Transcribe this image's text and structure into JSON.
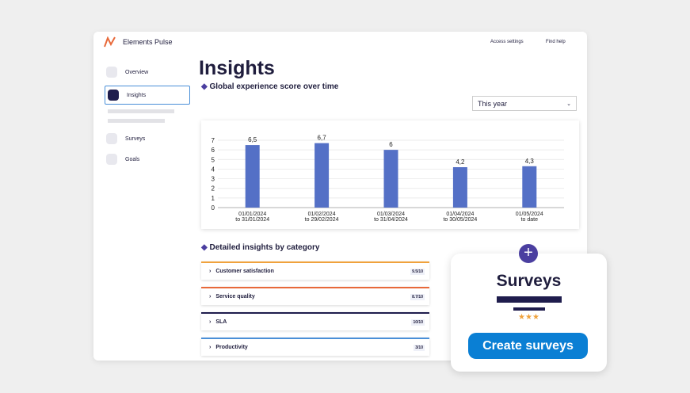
{
  "header": {
    "app_name": "Elements Pulse",
    "access_settings": "Access settings",
    "find_help": "Find help"
  },
  "sidebar": {
    "items": [
      "Overview",
      "Insights",
      "Surveys",
      "Goals"
    ],
    "selected": "Insights"
  },
  "page": {
    "title": "Insights",
    "chart_heading": "Global experience score over time",
    "period": "This year",
    "details_heading": "Detailed insights by category"
  },
  "chart_data": {
    "type": "bar",
    "categories": [
      [
        "01/01/2024",
        "to 31/01/2024"
      ],
      [
        "01/02/2024",
        "to 29/02/2024"
      ],
      [
        "01/03/2024",
        "to 31/04/2024"
      ],
      [
        "01/04/2024",
        "to 30/05/2024"
      ],
      [
        "01/05/2024",
        "to date"
      ]
    ],
    "values": [
      6.5,
      6.7,
      6,
      4.2,
      4.3
    ],
    "value_labels": [
      "6,5",
      "6,7",
      "6",
      "4,2",
      "4,3"
    ],
    "color": "#5470c6",
    "ylim": [
      0,
      7
    ],
    "yticks": [
      0,
      1,
      2,
      3,
      4,
      5,
      6,
      7
    ],
    "grid": true
  },
  "categories_list": {
    "rows": [
      {
        "name": "Customer satisfaction",
        "score": "9.5/10",
        "color": "#f0a23c"
      },
      {
        "name": "Service quality",
        "score": "8.7/10",
        "color": "#e8693a"
      },
      {
        "name": "SLA",
        "score": "10/10",
        "color": "#1f1d4d"
      },
      {
        "name": "Productivity",
        "score": "3/10",
        "color": "#4a8fd8"
      }
    ]
  },
  "promo": {
    "title": "Surveys",
    "button": "Create surveys"
  }
}
